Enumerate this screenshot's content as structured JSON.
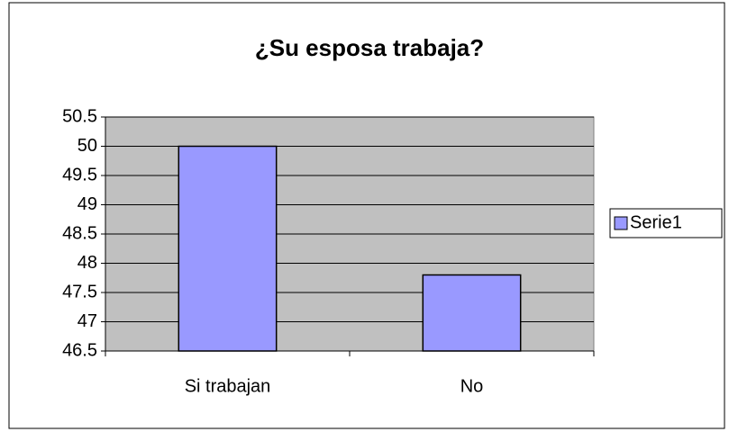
{
  "chart_data": {
    "type": "bar",
    "title": "¿Su esposa trabaja?",
    "categories": [
      "Si trabajan",
      "No"
    ],
    "series": [
      {
        "name": "Serie1",
        "color": "#9999ff",
        "values": [
          50,
          47.8
        ]
      }
    ],
    "ylim": [
      46.5,
      50.5
    ],
    "yticks": [
      46.5,
      47,
      47.5,
      48,
      48.5,
      49,
      49.5,
      50,
      50.5
    ],
    "grid": true,
    "legend": "right",
    "plot_background": "#c0c0c0"
  }
}
